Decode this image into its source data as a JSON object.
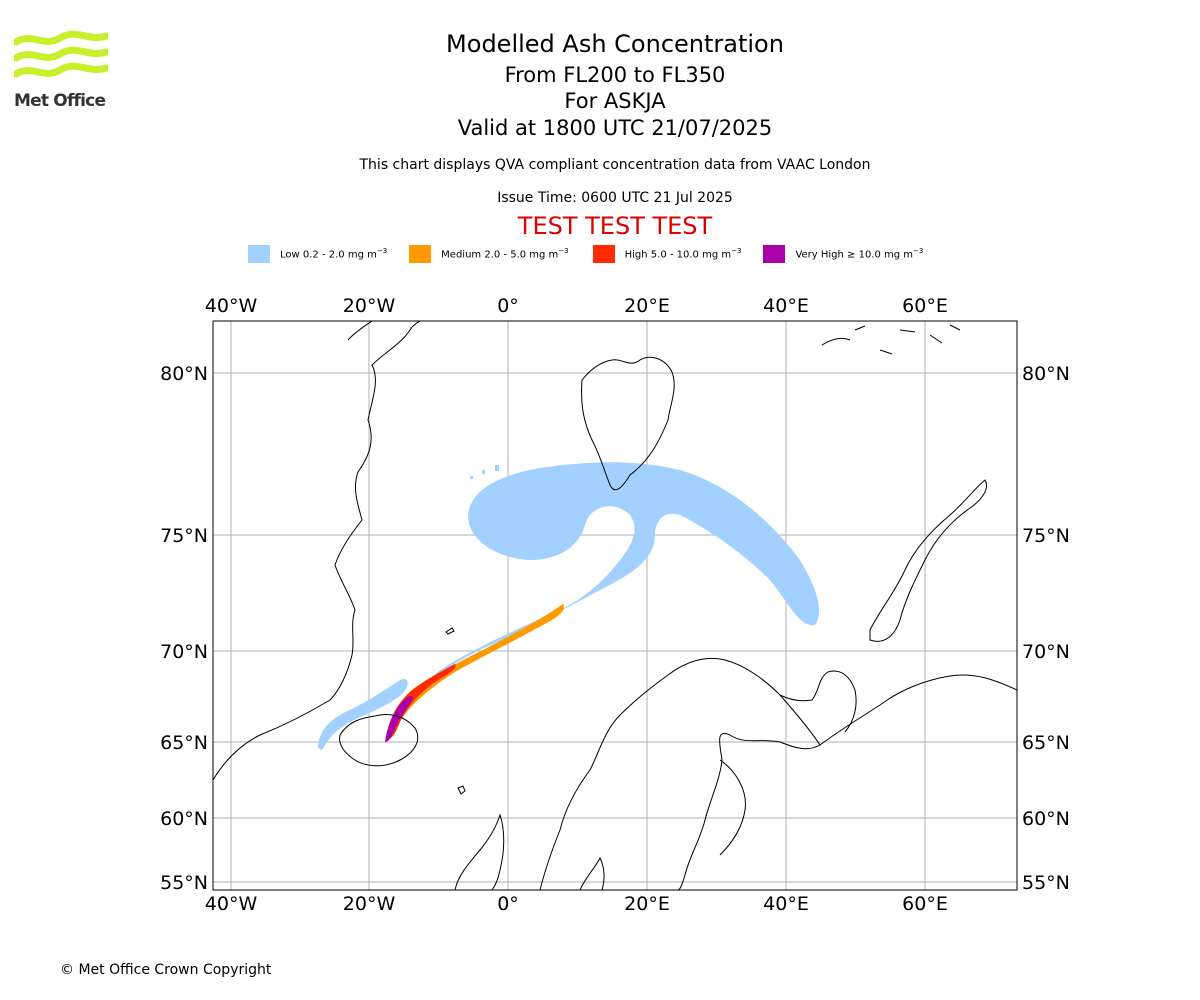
{
  "branding": {
    "logo_text": "Met Office",
    "logo_color": "#c8f02a"
  },
  "titles": {
    "main": "Modelled Ash Concentration",
    "flight_levels": "From FL200 to FL350",
    "volcano": "For ASKJA",
    "valid": "Valid at 1800 UTC 21/07/2025",
    "compliance": "This chart displays QVA compliant concentration data from VAAC London",
    "issue_time": "Issue Time: 0600 UTC 21 Jul 2025",
    "test_banner": "TEST TEST TEST",
    "test_banner_color": "#dd0000"
  },
  "legend": [
    {
      "label": "Low 0.2 - 2.0 mg m",
      "sup": "−3",
      "color": "#a3d1ff"
    },
    {
      "label": "Medium 2.0 - 5.0 mg m",
      "sup": "−3",
      "color": "#ff9900"
    },
    {
      "label": "High 5.0 - 10.0 mg m",
      "sup": "−3",
      "color": "#ff2a00"
    },
    {
      "label": "Very High  ≥  10.0 mg m",
      "sup": "−3",
      "color": "#a900a9"
    }
  ],
  "map": {
    "lon_ticks": [
      "40°W",
      "20°W",
      "0°",
      "20°E",
      "40°E",
      "60°E"
    ],
    "lat_ticks": [
      "80°N",
      "75°N",
      "70°N",
      "65°N",
      "60°N",
      "55°N"
    ],
    "grid": true,
    "coastline_color": "#000000"
  },
  "footer": {
    "copyright": "© Met Office Crown Copyright"
  }
}
